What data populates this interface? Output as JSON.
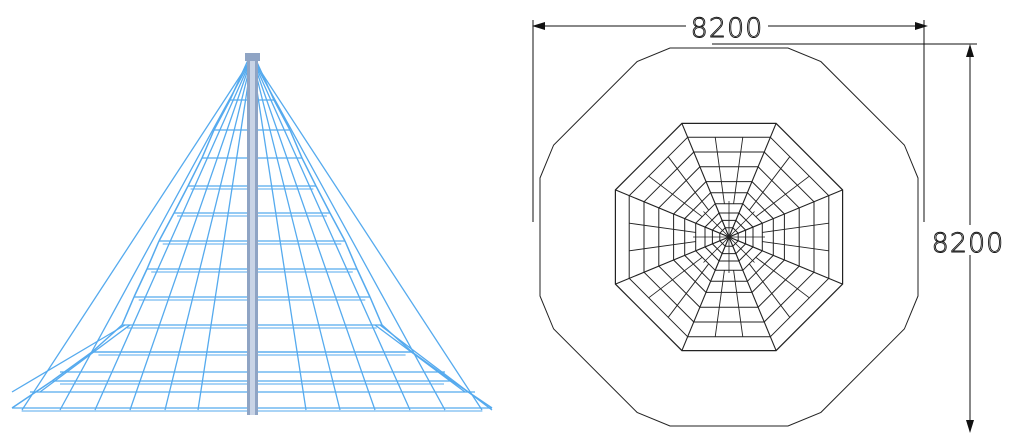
{
  "dimensions": {
    "width_label": "8200",
    "height_label": "8200"
  },
  "colors": {
    "background": "#ffffff",
    "net_line": "#55aaee",
    "pole_outer": "#8fa4c4",
    "pole_inner": "#c9d4e6",
    "plan_line": "#222222",
    "dimension_line": "#111111"
  },
  "views": {
    "elevation": "side-elevation-view",
    "plan": "top-plan-view"
  }
}
